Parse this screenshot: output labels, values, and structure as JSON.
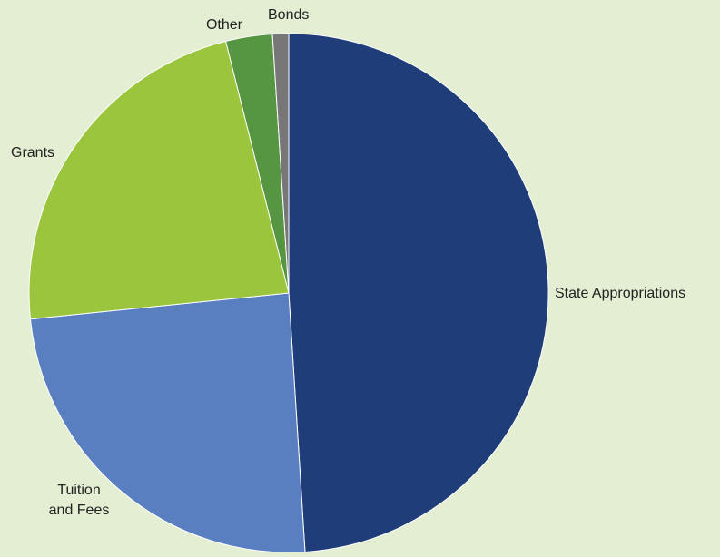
{
  "chart_data": {
    "type": "pie",
    "title": "",
    "start_angle_deg": 0,
    "direction": "clockwise",
    "slices": [
      {
        "label": "State Appropriations",
        "label_lines": [
          "State Appropriations"
        ],
        "value": 49.0,
        "color": "#1f3d78"
      },
      {
        "label": "Tuition and Fees",
        "label_lines": [
          "Tuition",
          "and Fees"
        ],
        "value": 24.4,
        "color": "#5a7fc0"
      },
      {
        "label": "Grants",
        "label_lines": [
          "Grants"
        ],
        "value": 22.7,
        "color": "#9ac53c"
      },
      {
        "label": "Other",
        "label_lines": [
          "Other"
        ],
        "value": 2.9,
        "color": "#569541"
      },
      {
        "label": "Bonds",
        "label_lines": [
          "Bonds"
        ],
        "value": 1.0,
        "color": "#777777"
      }
    ],
    "background_color": "#e3eed3",
    "legend": "none"
  }
}
